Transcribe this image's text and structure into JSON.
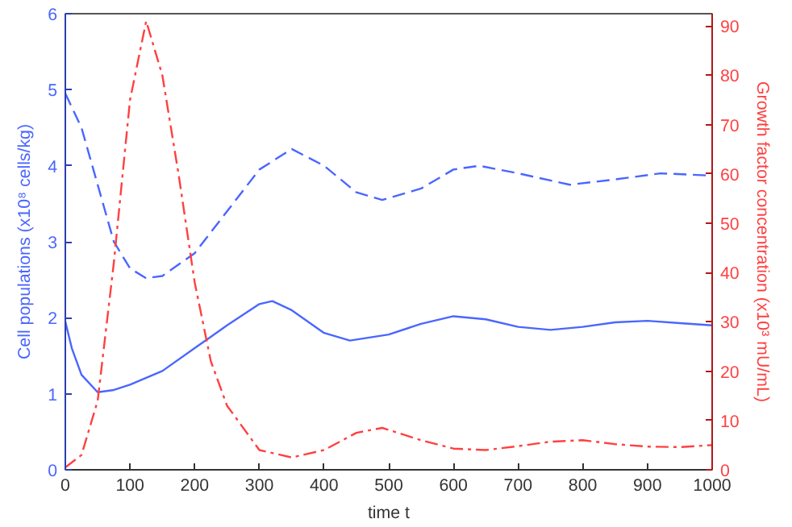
{
  "chart_data": {
    "type": "line",
    "xlabel": "time t",
    "ylabel": "Cell populations (x10⁸ cells/kg)",
    "y2label": "Growth factor concentration (x10³ mU/mL)",
    "xlim": [
      0,
      1000
    ],
    "xticks": [
      0,
      100,
      200,
      300,
      400,
      500,
      600,
      700,
      800,
      900,
      1000
    ],
    "ylim": [
      0,
      6
    ],
    "yticks": [
      0,
      1,
      2,
      3,
      4,
      5,
      6
    ],
    "y2lim": [
      0,
      92.5
    ],
    "y2ticks": [
      0,
      10,
      20,
      30,
      40,
      50,
      60,
      70,
      80,
      90
    ],
    "grid": false,
    "series": [
      {
        "color": "#4a66ff",
        "line_style": "solid",
        "x": [
          0,
          10,
          25,
          50,
          75,
          100,
          150,
          200,
          250,
          300,
          320,
          350,
          400,
          440,
          500,
          550,
          600,
          650,
          700,
          750,
          800,
          850,
          900,
          950,
          1000
        ],
        "values": [
          1.95,
          1.6,
          1.25,
          1.02,
          1.05,
          1.12,
          1.3,
          1.6,
          1.9,
          2.18,
          2.22,
          2.1,
          1.8,
          1.7,
          1.78,
          1.92,
          2.02,
          1.98,
          1.88,
          1.84,
          1.88,
          1.94,
          1.96,
          1.93,
          1.9
        ]
      },
      {
        "color": "#4a66ff",
        "line_style": "dashed",
        "x": [
          0,
          25,
          50,
          75,
          100,
          125,
          150,
          200,
          250,
          300,
          350,
          400,
          450,
          490,
          550,
          600,
          640,
          700,
          780,
          850,
          920,
          1000
        ],
        "values": [
          4.95,
          4.5,
          3.75,
          3.0,
          2.65,
          2.52,
          2.55,
          2.85,
          3.4,
          3.95,
          4.22,
          4.0,
          3.65,
          3.55,
          3.7,
          3.95,
          4.0,
          3.9,
          3.75,
          3.82,
          3.9,
          3.87
        ]
      },
      {
        "color": "#ff4040",
        "line_style": "dashdot",
        "axis": "y2",
        "x": [
          0,
          25,
          50,
          75,
          100,
          125,
          150,
          175,
          200,
          225,
          250,
          300,
          350,
          400,
          450,
          490,
          550,
          600,
          650,
          700,
          750,
          800,
          850,
          900,
          950,
          1000
        ],
        "values": [
          0.5,
          3,
          14,
          42,
          75,
          91,
          80,
          60,
          38,
          22,
          13,
          4,
          2.5,
          4,
          7.5,
          8.5,
          6,
          4.3,
          4,
          4.8,
          5.7,
          6,
          5.2,
          4.7,
          4.6,
          5
        ]
      }
    ]
  }
}
